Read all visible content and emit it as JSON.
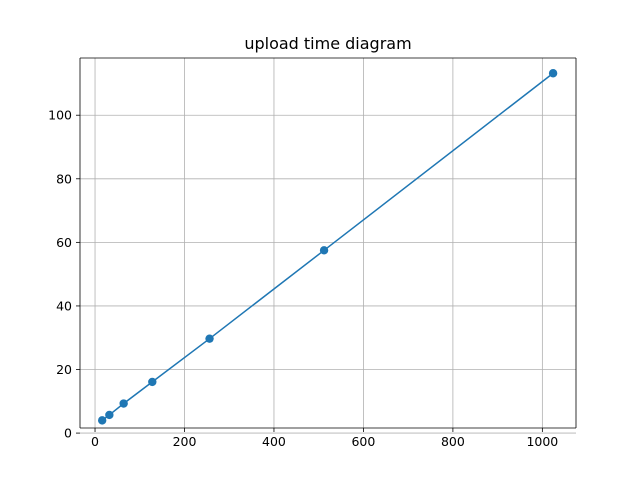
{
  "chart_data": {
    "type": "line",
    "title": "upload time diagram",
    "xlabel": "",
    "ylabel": "",
    "xlim": [
      -33.6,
      1075.2
    ],
    "ylim": [
      1.6,
      118.0
    ],
    "x_ticks": [
      0,
      200,
      400,
      600,
      800,
      1000
    ],
    "y_ticks": [
      0,
      20,
      40,
      60,
      80,
      100
    ],
    "grid": true,
    "legend": "none",
    "series": [
      {
        "color": "#1f77b4",
        "marker": "circle",
        "x": [
          16,
          32,
          64,
          128,
          256,
          512,
          1024
        ],
        "y": [
          4.0,
          5.7,
          9.3,
          16.1,
          29.7,
          57.5,
          113.2
        ]
      }
    ]
  }
}
